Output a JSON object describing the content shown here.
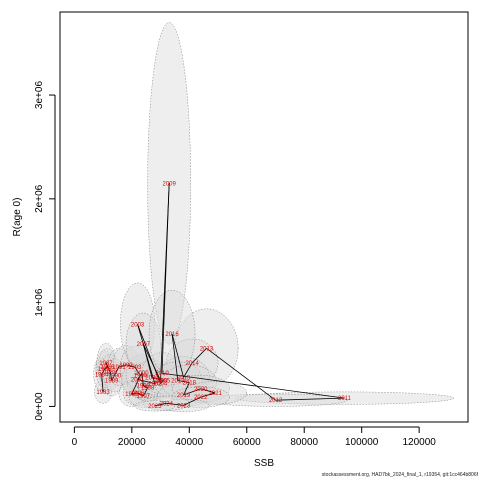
{
  "chart_data": {
    "type": "scatter",
    "xlabel": "SSB",
    "ylabel": "R(age 0)",
    "xlim": [
      -5000,
      137000
    ],
    "ylim": [
      -150000,
      3800000
    ],
    "x_ticks": [
      0,
      20000,
      40000,
      60000,
      80000,
      100000,
      120000
    ],
    "x_tick_labels": [
      "0",
      "20000",
      "40000",
      "60000",
      "80000",
      "100000",
      "120000"
    ],
    "y_ticks": [
      0,
      1000000,
      2000000,
      3000000
    ],
    "y_tick_labels": [
      "0e+00",
      "1e+06",
      "2e+06",
      "3e+06"
    ],
    "grid": false,
    "legend": "none",
    "colors": {
      "label": "#e00000",
      "line": "#000000",
      "ellipse_fill": "#d9d9d9",
      "ellipse_stroke": "#7a7a7a"
    },
    "points": [
      {
        "year": "1983",
        "x": 10000,
        "y": 140000,
        "sx": 3000,
        "sy": 110000
      },
      {
        "year": "1984",
        "x": 9500,
        "y": 310000,
        "sx": 2800,
        "sy": 160000
      },
      {
        "year": "1985",
        "x": 10500,
        "y": 360000,
        "sx": 3000,
        "sy": 180000
      },
      {
        "year": "1986",
        "x": 11500,
        "y": 380000,
        "sx": 3200,
        "sy": 180000
      },
      {
        "year": "1987",
        "x": 11000,
        "y": 420000,
        "sx": 3200,
        "sy": 190000
      },
      {
        "year": "1988",
        "x": 12500,
        "y": 330000,
        "sx": 3500,
        "sy": 170000
      },
      {
        "year": "1989",
        "x": 13000,
        "y": 250000,
        "sx": 3500,
        "sy": 150000
      },
      {
        "year": "1990",
        "x": 14000,
        "y": 300000,
        "sx": 3800,
        "sy": 160000
      },
      {
        "year": "1991",
        "x": 15500,
        "y": 380000,
        "sx": 4000,
        "sy": 180000
      },
      {
        "year": "1992",
        "x": 18000,
        "y": 400000,
        "sx": 4500,
        "sy": 190000
      },
      {
        "year": "1993",
        "x": 21000,
        "y": 380000,
        "sx": 5000,
        "sy": 200000
      },
      {
        "year": "1994",
        "x": 23000,
        "y": 300000,
        "sx": 5000,
        "sy": 180000
      },
      {
        "year": "1995",
        "x": 20000,
        "y": 120000,
        "sx": 4500,
        "sy": 120000
      },
      {
        "year": "1996",
        "x": 22000,
        "y": 130000,
        "sx": 5000,
        "sy": 120000
      },
      {
        "year": "1997",
        "x": 24000,
        "y": 100000,
        "sx": 5000,
        "sy": 110000
      },
      {
        "year": "1998",
        "x": 25500,
        "y": 180000,
        "sx": 5500,
        "sy": 130000
      },
      {
        "year": "1999",
        "x": 24000,
        "y": 200000,
        "sx": 5500,
        "sy": 130000
      },
      {
        "year": "2000",
        "x": 23500,
        "y": 320000,
        "sx": 5500,
        "sy": 180000
      },
      {
        "year": "2001",
        "x": 22000,
        "y": 260000,
        "sx": 5500,
        "sy": 160000
      },
      {
        "year": "2002",
        "x": 28000,
        "y": 220000,
        "sx": 6000,
        "sy": 150000
      },
      {
        "year": "2003",
        "x": 22000,
        "y": 790000,
        "sx": 6000,
        "sy": 400000
      },
      {
        "year": "2004",
        "x": 30000,
        "y": 220000,
        "sx": 6500,
        "sy": 150000
      },
      {
        "year": "2005",
        "x": 31000,
        "y": 250000,
        "sx": 6500,
        "sy": 160000
      },
      {
        "year": "2006",
        "x": 27000,
        "y": 280000,
        "sx": 6000,
        "sy": 170000
      },
      {
        "year": "2007",
        "x": 24000,
        "y": 600000,
        "sx": 6000,
        "sy": 300000
      },
      {
        "year": "2008",
        "x": 30000,
        "y": 250000,
        "sx": 6500,
        "sy": 160000
      },
      {
        "year": "2009",
        "x": 33000,
        "y": 2150000,
        "sx": 7500,
        "sy": 1550000
      },
      {
        "year": "2010",
        "x": 30500,
        "y": 320000,
        "sx": 7000,
        "sy": 200000
      },
      {
        "year": "2011",
        "x": 94000,
        "y": 80000,
        "sx": 38000,
        "sy": 60000
      },
      {
        "year": "2012",
        "x": 70000,
        "y": 60000,
        "sx": 25000,
        "sy": 60000
      },
      {
        "year": "2013",
        "x": 46000,
        "y": 560000,
        "sx": 11000,
        "sy": 380000
      },
      {
        "year": "2014",
        "x": 41000,
        "y": 420000,
        "sx": 9000,
        "sy": 230000
      },
      {
        "year": "2015",
        "x": 38000,
        "y": 280000,
        "sx": 9000,
        "sy": 200000
      },
      {
        "year": "2016",
        "x": 34000,
        "y": 700000,
        "sx": 8000,
        "sy": 420000
      },
      {
        "year": "2017",
        "x": 36000,
        "y": 250000,
        "sx": 8500,
        "sy": 180000
      },
      {
        "year": "2018",
        "x": 40000,
        "y": 230000,
        "sx": 9500,
        "sy": 170000
      },
      {
        "year": "2019",
        "x": 38000,
        "y": 110000,
        "sx": 9000,
        "sy": 110000
      },
      {
        "year": "2020",
        "x": 44000,
        "y": 170000,
        "sx": 10000,
        "sy": 130000
      },
      {
        "year": "2021",
        "x": 49000,
        "y": 130000,
        "sx": 11000,
        "sy": 110000
      },
      {
        "year": "2022",
        "x": 44000,
        "y": 90000,
        "sx": 10000,
        "sy": 100000
      },
      {
        "year": "2023",
        "x": 38000,
        "y": 10000,
        "sx": 9000,
        "sy": 60000
      },
      {
        "year": "2024",
        "x": 32000,
        "y": 30000,
        "sx": 8000,
        "sy": 70000
      },
      {
        "year": "2025",
        "x": 28000,
        "y": 5000,
        "sx": 7000,
        "sy": 50000
      }
    ]
  },
  "footer": {
    "text": "stockassessment.org, HAD7bk_2024_final_1, r19354, git:1cc464b806f"
  }
}
